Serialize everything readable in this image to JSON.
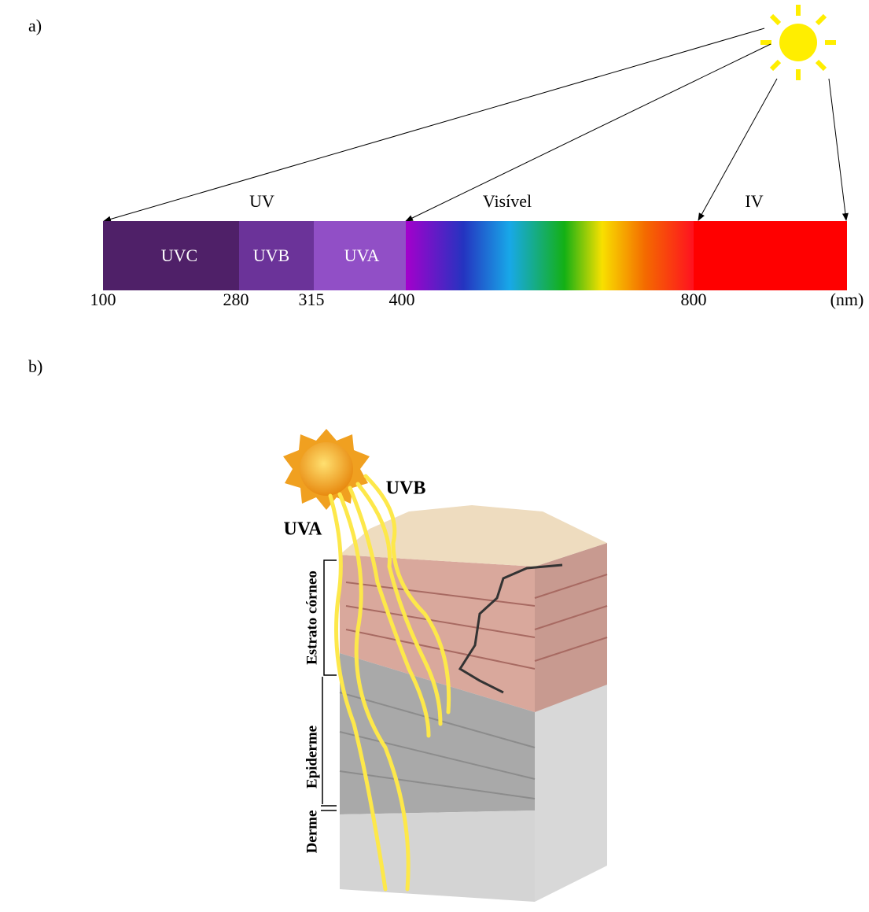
{
  "labels": {
    "a": "a)",
    "b": "b)"
  },
  "spectrum": {
    "regions": [
      "UV",
      "Visível",
      "IV"
    ],
    "bands": [
      "UVC",
      "UVB",
      "UVA"
    ],
    "ticks": [
      "100",
      "280",
      "315",
      "400",
      "800"
    ],
    "unit": "(nm)"
  },
  "skin": {
    "rays": [
      "UVB",
      "UVA"
    ],
    "layers": [
      "Estrato córneo",
      "Epiderme",
      "Derme"
    ]
  }
}
